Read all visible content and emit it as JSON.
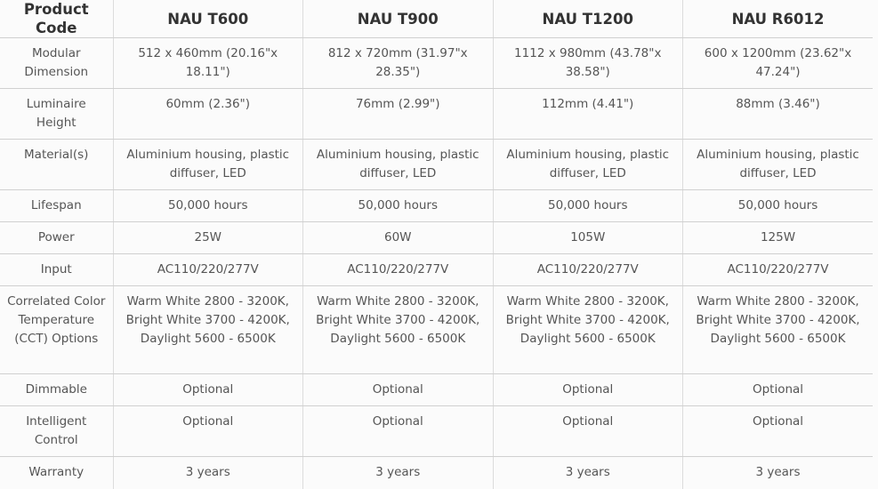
{
  "headers": [
    "Product Code",
    "NAU T600",
    "NAU T900",
    "NAU T1200",
    "NAU R6012"
  ],
  "rows": [
    {
      "label": "Modular Dimension",
      "values": [
        "512 x 460mm (20.16\"x 18.11\")",
        "812 x 720mm (31.97\"x 28.35\")",
        "1112 x 980mm (43.78\"x 38.58\")",
        "600 x 1200mm (23.62\"x 47.24\")"
      ]
    },
    {
      "label": "Luminaire Height",
      "values": [
        "60mm (2.36\")",
        "76mm (2.99\")",
        "112mm (4.41\")",
        "88mm (3.46\")"
      ]
    },
    {
      "label": "Material(s)",
      "values": [
        "Aluminium housing, plastic diffuser, LED",
        "Aluminium housing, plastic diffuser, LED",
        "Aluminium housing, plastic diffuser, LED",
        "Aluminium housing, plastic diffuser, LED"
      ]
    },
    {
      "label": "Lifespan",
      "values": [
        "50,000 hours",
        "50,000 hours",
        "50,000 hours",
        "50,000 hours"
      ]
    },
    {
      "label": "Power",
      "values": [
        "25W",
        "60W",
        "105W",
        "125W"
      ]
    },
    {
      "label": "Input",
      "values": [
        "AC110/220/277V",
        "AC110/220/277V",
        "AC110/220/277V",
        "AC110/220/277V"
      ]
    },
    {
      "label": "Correlated Color Temperature (CCT) Options",
      "values": [
        "Warm White 2800 - 3200K, Bright White 3700 - 4200K, Daylight 5600 - 6500K",
        "Warm White 2800 - 3200K, Bright White 3700 - 4200K, Daylight 5600 - 6500K",
        "Warm White 2800 - 3200K, Bright White 3700 - 4200K, Daylight 5600 - 6500K",
        "Warm White 2800 - 3200K, Bright White 3700 - 4200K, Daylight 5600 - 6500K"
      ]
    },
    {
      "label": "Dimmable",
      "values": [
        "Optional",
        "Optional",
        "Optional",
        "Optional"
      ]
    },
    {
      "label": "Intelligent Control",
      "values": [
        "Optional",
        "Optional",
        "Optional",
        "Optional"
      ]
    },
    {
      "label": "Warranty",
      "values": [
        "3 years",
        "3 years",
        "3 years",
        "3 years"
      ]
    }
  ]
}
